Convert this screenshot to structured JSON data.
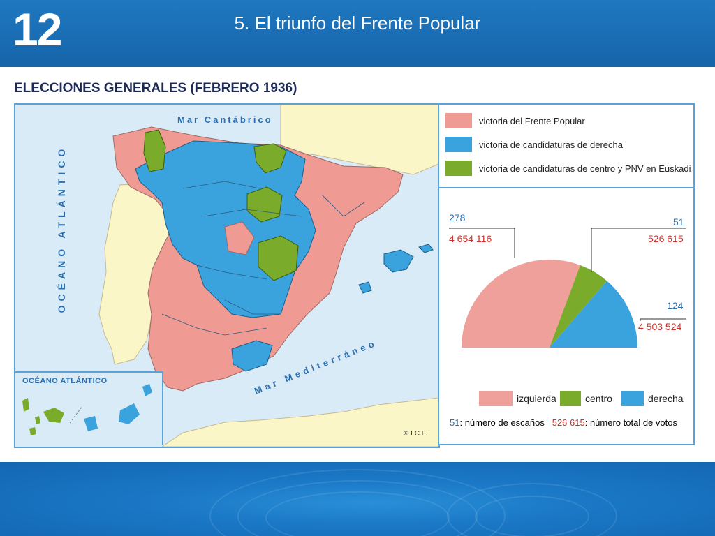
{
  "header": {
    "slide_number": "12",
    "title": "5. El triunfo del Frente Popular"
  },
  "content_title": "ELECCIONES GENERALES (FEBRERO 1936)",
  "map": {
    "seas": {
      "cantabrico": "Mar Cantábrico",
      "atlantico": "OCÉANO ATLÁNTICO",
      "mediterraneo": "Mar Mediterráneo"
    },
    "inset_title": "OCÉANO ATLÁNTICO",
    "copyright": "© I.C.L.",
    "colors": {
      "frente_popular": "#ef9a93",
      "derecha": "#3aa2dc",
      "centro": "#7aab2a",
      "portugal": "#fbf6c8",
      "sea": "#d8ebf7"
    }
  },
  "legend": {
    "items": [
      {
        "label": "victoria del Frente Popular",
        "color": "#ef9a93"
      },
      {
        "label": "victoria de candidaturas de derecha",
        "color": "#3aa2dc"
      },
      {
        "label": "victoria de candidaturas de centro y PNV en Euskadi",
        "color": "#7aab2a"
      }
    ]
  },
  "chart_data": {
    "type": "pie",
    "categories": [
      "izquierda",
      "centro",
      "derecha"
    ],
    "seats": [
      278,
      51,
      124
    ],
    "votes": [
      "4 654 116",
      "526 615",
      "4 503 524"
    ],
    "colors": [
      "#f0a09a",
      "#7aab2a",
      "#3aa2dc"
    ],
    "labels": {
      "left_seats": "278",
      "left_votes": "4 654 116",
      "center_seats": "51",
      "center_votes": "526 615",
      "right_seats": "124",
      "right_votes": "4 503 524"
    },
    "legend": {
      "izquierda": "izquierda",
      "centro": "centro",
      "derecha": "derecha"
    },
    "footnote_seats_value": "51",
    "footnote_seats_text": ": número de escaños",
    "footnote_votes_value": "526 615",
    "footnote_votes_text": ": número total de votos"
  }
}
